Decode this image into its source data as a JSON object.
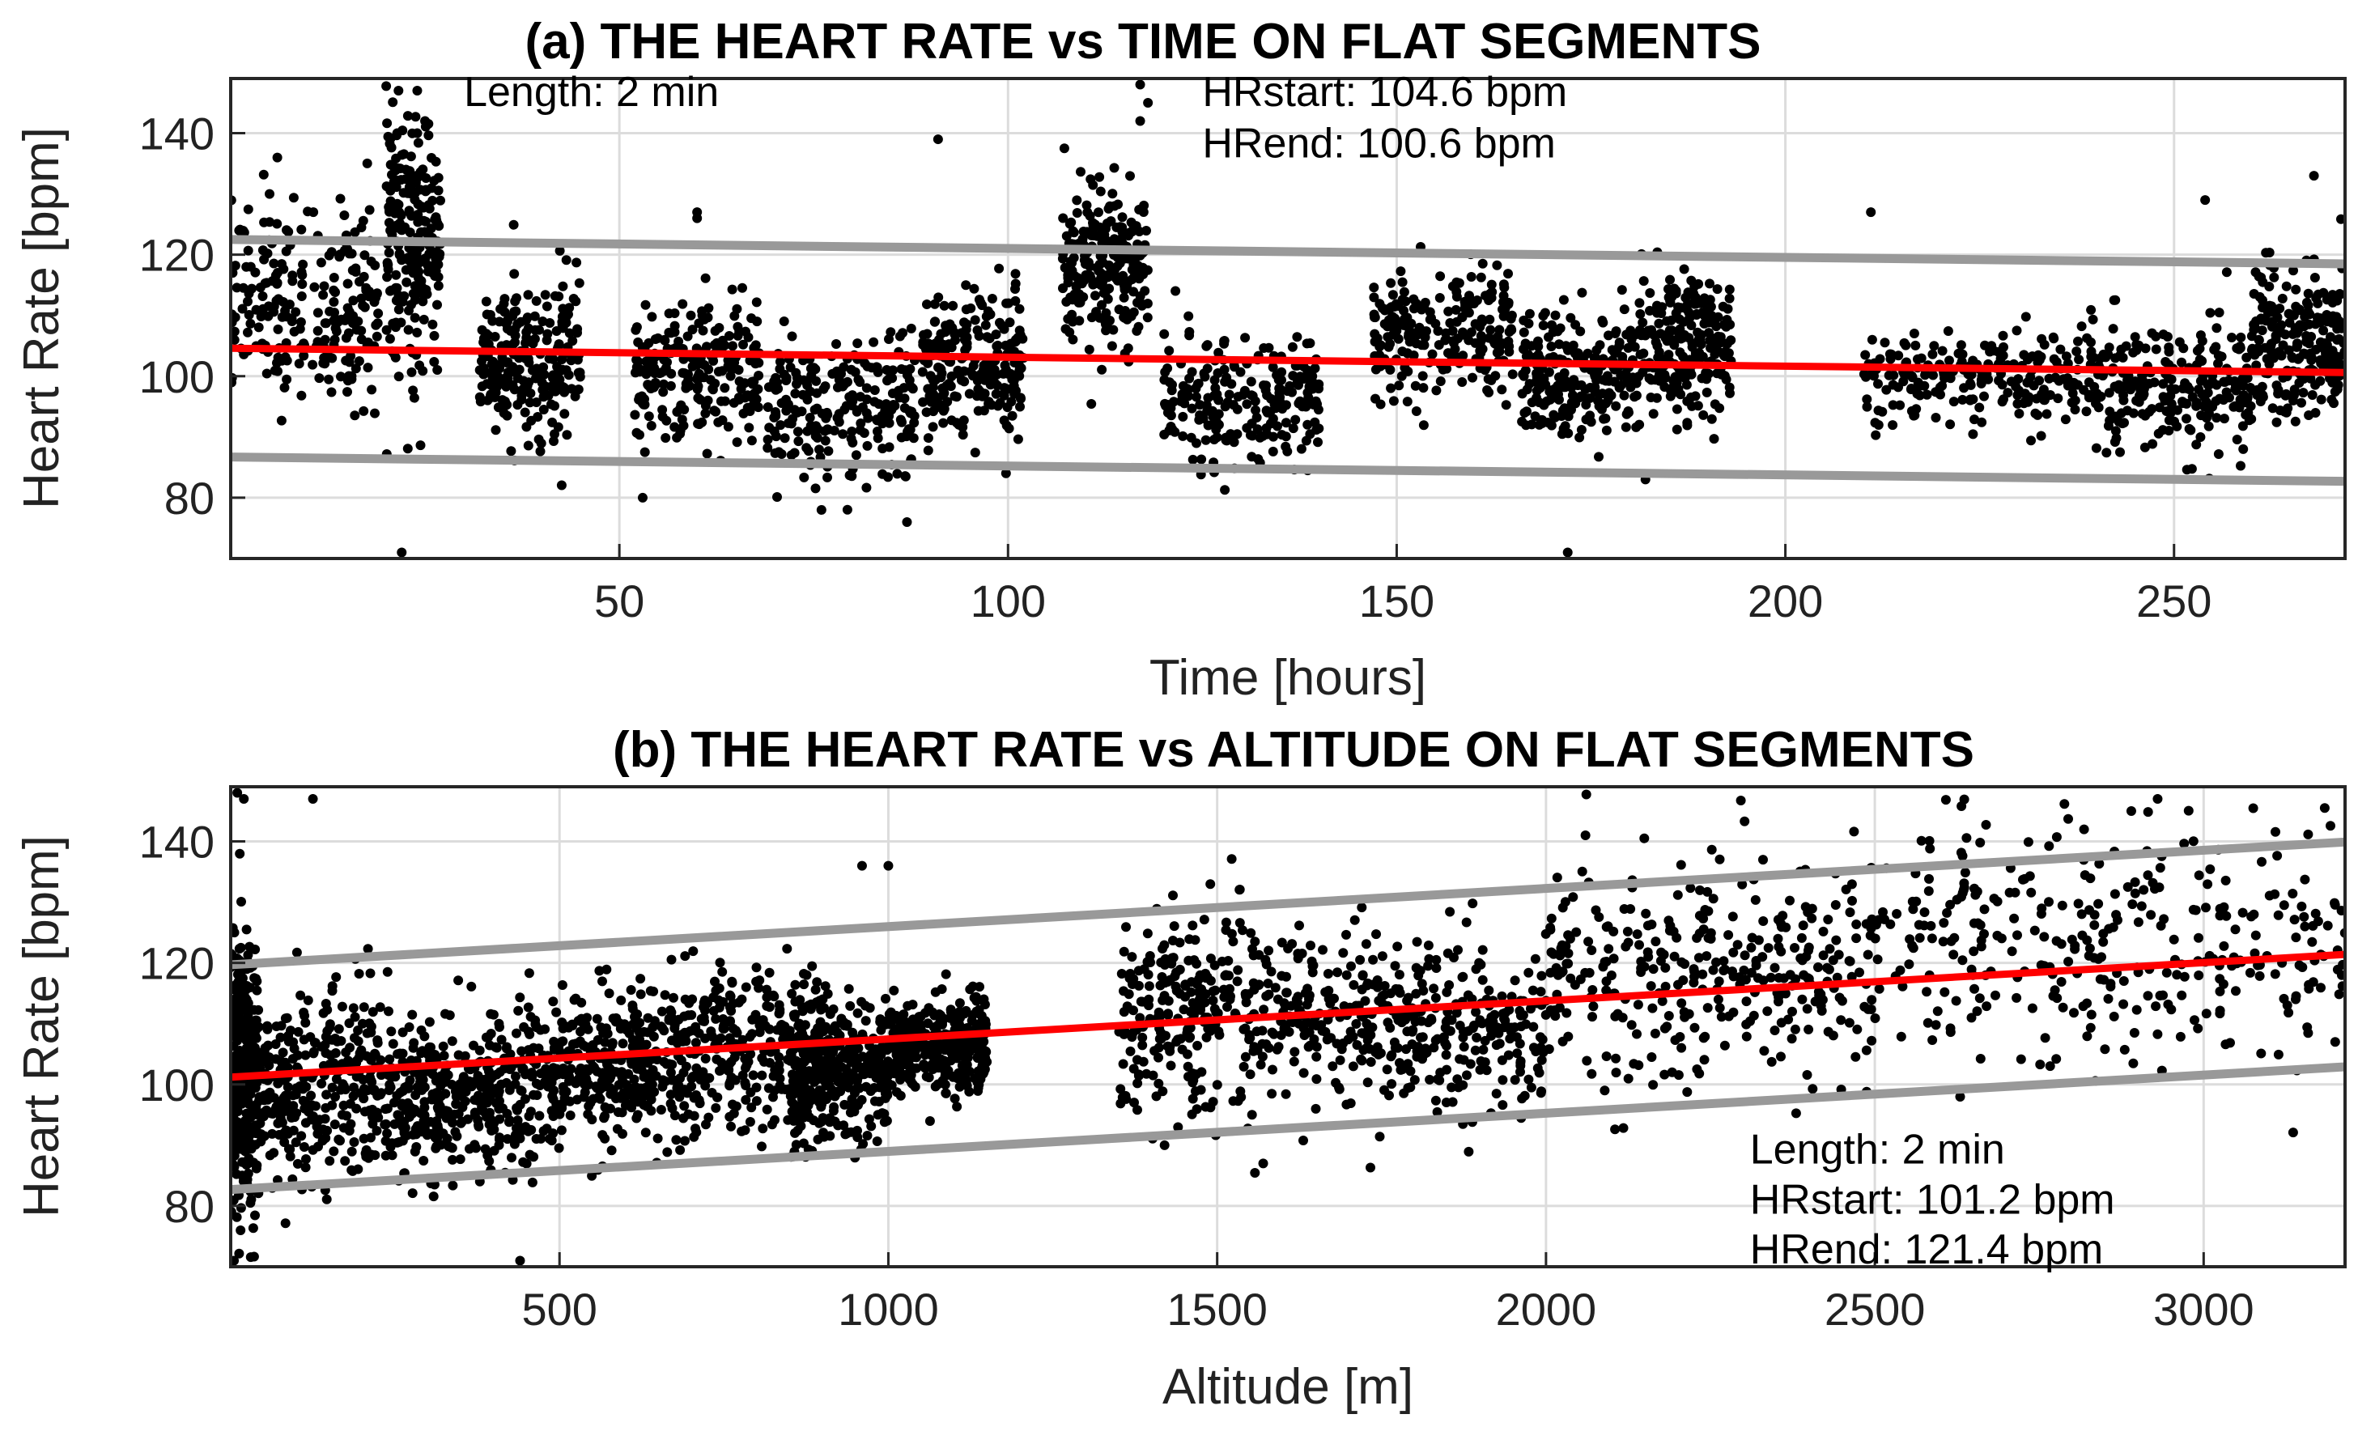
{
  "chart_data": [
    {
      "id": "a",
      "type": "scatter",
      "title": "(a) THE HEART RATE vs TIME ON FLAT SEGMENTS",
      "xlabel": "Time [hours]",
      "ylabel": "Heart Rate [bpm]",
      "xlim": [
        0,
        272
      ],
      "ylim": [
        70,
        149
      ],
      "xticks": [
        50,
        100,
        150,
        200,
        250
      ],
      "yticks": [
        80,
        100,
        120,
        140
      ],
      "grid": true,
      "legend": "none",
      "annotations": [
        {
          "text": "Length: 2 min",
          "x": 30,
          "y": 144.5
        },
        {
          "text": "HRstart: 104.6 bpm",
          "x": 125,
          "y": 144.5
        },
        {
          "text": "HRend: 100.6 bpm",
          "x": 125,
          "y": 136
        }
      ],
      "fit_line": {
        "color": "#ff0000",
        "x": [
          0,
          272
        ],
        "y": [
          104.6,
          100.6
        ]
      },
      "bounds": [
        {
          "color": "#999999",
          "x": [
            0,
            272
          ],
          "y": [
            122.5,
            118.5
          ]
        },
        {
          "color": "#999999",
          "x": [
            0,
            272
          ],
          "y": [
            86.7,
            82.7
          ]
        }
      ],
      "point_color": "#000000",
      "clusters": [
        {
          "x": [
            0,
            19
          ],
          "mean": 112,
          "sd": 8
        },
        {
          "x": [
            20,
            27
          ],
          "mean": 122,
          "sd": 10
        },
        {
          "x": [
            32,
            45
          ],
          "mean": 102,
          "sd": 7
        },
        {
          "x": [
            52,
            68
          ],
          "mean": 100,
          "sd": 6
        },
        {
          "x": [
            69,
            88
          ],
          "mean": 95,
          "sd": 6
        },
        {
          "x": [
            89,
            102
          ],
          "mean": 102,
          "sd": 6
        },
        {
          "x": [
            107,
            118
          ],
          "mean": 118,
          "sd": 6
        },
        {
          "x": [
            120,
            140
          ],
          "mean": 97,
          "sd": 5
        },
        {
          "x": [
            147,
            165
          ],
          "mean": 107,
          "sd": 5
        },
        {
          "x": [
            166,
            181
          ],
          "mean": 100,
          "sd": 5
        },
        {
          "x": [
            181,
            193
          ],
          "mean": 105,
          "sd": 6
        },
        {
          "x": [
            210,
            240
          ],
          "mean": 100,
          "sd": 4
        },
        {
          "x": [
            240,
            260
          ],
          "mean": 98,
          "sd": 5
        },
        {
          "x": [
            260,
            272
          ],
          "mean": 106,
          "sd": 6
        }
      ],
      "outliers": [
        {
          "x": 2,
          "y": 118
        },
        {
          "x": 5,
          "y": 130
        },
        {
          "x": 6,
          "y": 136
        },
        {
          "x": 22,
          "y": 71
        },
        {
          "x": 24,
          "y": 147
        },
        {
          "x": 24,
          "y": 140
        },
        {
          "x": 25,
          "y": 142
        },
        {
          "x": 53,
          "y": 80
        },
        {
          "x": 60,
          "y": 127
        },
        {
          "x": 60,
          "y": 126
        },
        {
          "x": 76,
          "y": 78
        },
        {
          "x": 87,
          "y": 76
        },
        {
          "x": 91,
          "y": 139
        },
        {
          "x": 117,
          "y": 148
        },
        {
          "x": 117,
          "y": 142
        },
        {
          "x": 118,
          "y": 145
        },
        {
          "x": 211,
          "y": 127
        },
        {
          "x": 172,
          "y": 71
        },
        {
          "x": 254,
          "y": 129
        },
        {
          "x": 268,
          "y": 133
        },
        {
          "x": 182,
          "y": 83
        }
      ]
    },
    {
      "id": "b",
      "type": "scatter",
      "title": "(b) THE HEART RATE vs ALTITUDE ON FLAT SEGMENTS",
      "xlabel": "Altitude [m]",
      "ylabel": "Heart Rate [bpm]",
      "xlim": [
        0,
        3215
      ],
      "ylim": [
        70,
        149
      ],
      "xticks": [
        500,
        1000,
        1500,
        2000,
        2500,
        3000
      ],
      "yticks": [
        80,
        100,
        120,
        140
      ],
      "grid": true,
      "legend": "none",
      "annotations": [
        {
          "text": "Length: 2 min",
          "x": 2310,
          "y": 87
        },
        {
          "text": "HRstart: 101.2 bpm",
          "x": 2310,
          "y": 78.7
        },
        {
          "text": "HRend: 121.4 bpm",
          "x": 2310,
          "y": 70.5
        }
      ],
      "fit_line": {
        "color": "#ff0000",
        "x": [
          0,
          3215
        ],
        "y": [
          101.2,
          121.4
        ]
      },
      "bounds": [
        {
          "color": "#999999",
          "x": [
            0,
            3215
          ],
          "y": [
            119.7,
            139.9
          ]
        },
        {
          "color": "#999999",
          "x": [
            0,
            3215
          ],
          "y": [
            82.7,
            102.9
          ]
        }
      ],
      "point_color": "#000000",
      "clusters": [
        {
          "x": [
            0,
            40
          ],
          "mean": 103,
          "sd": 11
        },
        {
          "x": [
            40,
            250
          ],
          "mean": 100,
          "sd": 8
        },
        {
          "x": [
            250,
            450
          ],
          "mean": 98,
          "sd": 6
        },
        {
          "x": [
            450,
            650
          ],
          "mean": 102,
          "sd": 6
        },
        {
          "x": [
            650,
            900
          ],
          "mean": 105,
          "sd": 7
        },
        {
          "x": [
            850,
            1000
          ],
          "mean": 102,
          "sd": 6
        },
        {
          "x": [
            1000,
            1150
          ],
          "mean": 106,
          "sd": 4
        },
        {
          "x": [
            1350,
            1650
          ],
          "mean": 112,
          "sd": 8
        },
        {
          "x": [
            1650,
            2000
          ],
          "mean": 110,
          "sd": 7
        },
        {
          "x": [
            2000,
            2500
          ],
          "mean": 118,
          "sd": 9
        },
        {
          "x": [
            2500,
            3215
          ],
          "mean": 123,
          "sd": 10
        }
      ],
      "outliers": [
        {
          "x": 10,
          "y": 148
        },
        {
          "x": 20,
          "y": 147
        },
        {
          "x": 5,
          "y": 71
        },
        {
          "x": 15,
          "y": 76
        },
        {
          "x": 125,
          "y": 147
        },
        {
          "x": 440,
          "y": 71
        },
        {
          "x": 960,
          "y": 136
        },
        {
          "x": 1000,
          "y": 136
        },
        {
          "x": 1570,
          "y": 87
        },
        {
          "x": 2060,
          "y": 141
        },
        {
          "x": 2330,
          "y": 137
        },
        {
          "x": 2890,
          "y": 145
        },
        {
          "x": 2930,
          "y": 147
        },
        {
          "x": 3200,
          "y": 107
        },
        {
          "x": 3210,
          "y": 118
        },
        {
          "x": 1420,
          "y": 90
        },
        {
          "x": 1650,
          "y": 96
        }
      ]
    }
  ]
}
